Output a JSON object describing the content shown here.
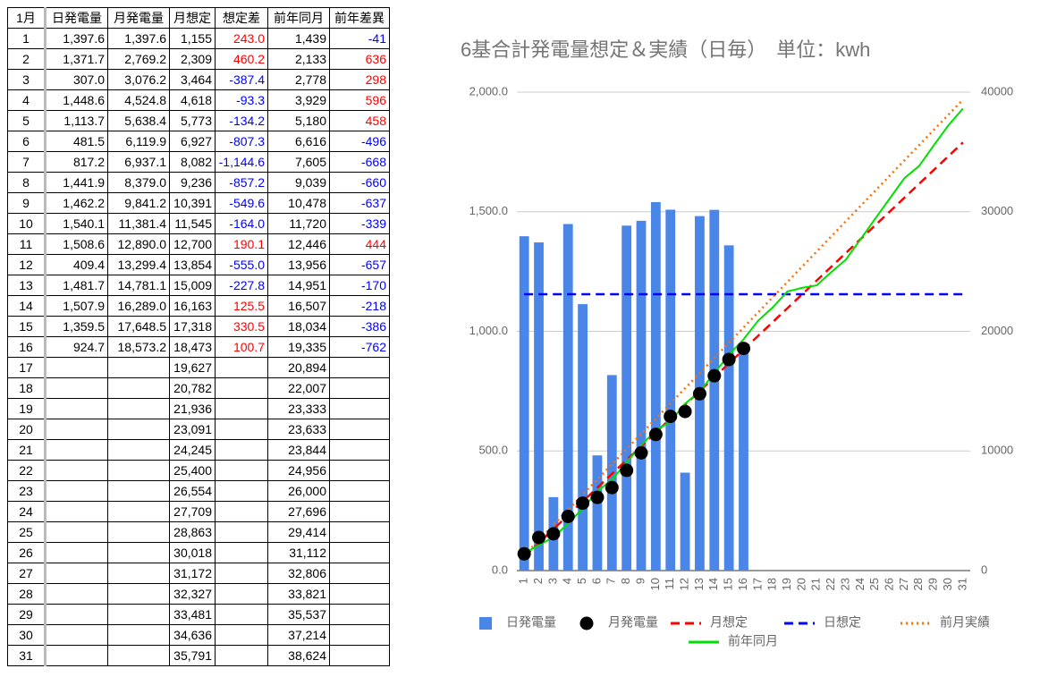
{
  "table": {
    "headers": [
      "1月",
      "日発電量",
      "月発電量",
      "月想定",
      "想定差",
      "前年同月",
      "前年差異"
    ],
    "rows": [
      [
        "1",
        "1,397.6",
        "1,397.6",
        "1,155",
        "243.0",
        "1,439",
        "-41"
      ],
      [
        "2",
        "1,371.7",
        "2,769.2",
        "2,309",
        "460.2",
        "2,133",
        "636"
      ],
      [
        "3",
        "307.0",
        "3,076.2",
        "3,464",
        "-387.4",
        "2,778",
        "298"
      ],
      [
        "4",
        "1,448.6",
        "4,524.8",
        "4,618",
        "-93.3",
        "3,929",
        "596"
      ],
      [
        "5",
        "1,113.7",
        "5,638.4",
        "5,773",
        "-134.2",
        "5,180",
        "458"
      ],
      [
        "6",
        "481.5",
        "6,119.9",
        "6,927",
        "-807.3",
        "6,616",
        "-496"
      ],
      [
        "7",
        "817.2",
        "6,937.1",
        "8,082",
        "-1,144.6",
        "7,605",
        "-668"
      ],
      [
        "8",
        "1,441.9",
        "8,379.0",
        "9,236",
        "-857.2",
        "9,039",
        "-660"
      ],
      [
        "9",
        "1,462.2",
        "9,841.2",
        "10,391",
        "-549.6",
        "10,478",
        "-637"
      ],
      [
        "10",
        "1,540.1",
        "11,381.4",
        "11,545",
        "-164.0",
        "11,720",
        "-339"
      ],
      [
        "11",
        "1,508.6",
        "12,890.0",
        "12,700",
        "190.1",
        "12,446",
        "444"
      ],
      [
        "12",
        "409.4",
        "13,299.4",
        "13,854",
        "-555.0",
        "13,956",
        "-657"
      ],
      [
        "13",
        "1,481.7",
        "14,781.1",
        "15,009",
        "-227.8",
        "14,951",
        "-170"
      ],
      [
        "14",
        "1,507.9",
        "16,289.0",
        "16,163",
        "125.5",
        "16,507",
        "-218"
      ],
      [
        "15",
        "1,359.5",
        "17,648.5",
        "17,318",
        "330.5",
        "18,034",
        "-386"
      ],
      [
        "16",
        "924.7",
        "18,573.2",
        "18,473",
        "100.7",
        "19,335",
        "-762"
      ],
      [
        "17",
        null,
        null,
        "19,627",
        null,
        "20,894",
        null
      ],
      [
        "18",
        null,
        null,
        "20,782",
        null,
        "22,007",
        null
      ],
      [
        "19",
        null,
        null,
        "21,936",
        null,
        "23,333",
        null
      ],
      [
        "20",
        null,
        null,
        "23,091",
        null,
        "23,633",
        null
      ],
      [
        "21",
        null,
        null,
        "24,245",
        null,
        "23,844",
        null
      ],
      [
        "22",
        null,
        null,
        "25,400",
        null,
        "24,956",
        null
      ],
      [
        "23",
        null,
        null,
        "26,554",
        null,
        "26,000",
        null
      ],
      [
        "24",
        null,
        null,
        "27,709",
        null,
        "27,696",
        null
      ],
      [
        "25",
        null,
        null,
        "28,863",
        null,
        "29,414",
        null
      ],
      [
        "26",
        null,
        null,
        "30,018",
        null,
        "31,112",
        null
      ],
      [
        "27",
        null,
        null,
        "31,172",
        null,
        "32,806",
        null
      ],
      [
        "28",
        null,
        null,
        "32,327",
        null,
        "33,821",
        null
      ],
      [
        "29",
        null,
        null,
        "33,481",
        null,
        "35,537",
        null
      ],
      [
        "30",
        null,
        null,
        "34,636",
        null,
        "37,214",
        null
      ],
      [
        "31",
        null,
        null,
        "35,791",
        null,
        "38,624",
        null
      ]
    ]
  },
  "chart_data": {
    "type": "combo",
    "title": "6基合計発電量想定＆実績（日毎）　単位：kwh",
    "categories": [
      "1",
      "2",
      "3",
      "4",
      "5",
      "6",
      "7",
      "8",
      "9",
      "10",
      "11",
      "12",
      "13",
      "14",
      "15",
      "16",
      "17",
      "18",
      "19",
      "20",
      "21",
      "22",
      "23",
      "24",
      "25",
      "26",
      "27",
      "28",
      "29",
      "30",
      "31"
    ],
    "ylim": [
      0,
      2000
    ],
    "yticks": [
      {
        "value": 0,
        "label": "0.0"
      },
      {
        "value": 500,
        "label": "500.0"
      },
      {
        "value": 1000,
        "label": "1,000.0"
      },
      {
        "value": 1500,
        "label": "1,500.0"
      },
      {
        "value": 2000,
        "label": "2,000.0"
      }
    ],
    "y2lim": [
      0,
      40000
    ],
    "y2ticks": [
      0,
      10000,
      20000,
      30000,
      40000
    ],
    "grid": true,
    "legend": "bottom",
    "series": [
      {
        "name": "日発電量",
        "type": "bar",
        "color": "#4a86e8",
        "values": [
          1397.6,
          1371.7,
          307.0,
          1448.6,
          1113.7,
          481.5,
          817.2,
          1441.9,
          1462.2,
          1540.1,
          1508.6,
          409.4,
          1481.7,
          1507.9,
          1359.5,
          924.7,
          null,
          null,
          null,
          null,
          null,
          null,
          null,
          null,
          null,
          null,
          null,
          null,
          null,
          null,
          null
        ]
      },
      {
        "name": "月発電量",
        "type": "scatter",
        "axis": "y2",
        "color": "#000000",
        "values": [
          1397.6,
          2769.2,
          3076.2,
          4524.8,
          5638.4,
          6119.9,
          6937.1,
          8379.0,
          9841.2,
          11381.4,
          12890.0,
          13299.4,
          14781.1,
          16289.0,
          17648.5,
          18573.2,
          null,
          null,
          null,
          null,
          null,
          null,
          null,
          null,
          null,
          null,
          null,
          null,
          null,
          null,
          null
        ]
      },
      {
        "name": "月想定",
        "type": "line",
        "axis": "y2",
        "color": "#ff0000",
        "style": "dashed",
        "values": [
          1155,
          2309,
          3464,
          4618,
          5773,
          6927,
          8082,
          9236,
          10391,
          11545,
          12700,
          13854,
          15009,
          16163,
          17318,
          18473,
          19627,
          20782,
          21936,
          23091,
          24245,
          25400,
          26554,
          27709,
          28863,
          30018,
          31172,
          32327,
          33481,
          34636,
          35791
        ]
      },
      {
        "name": "日想定",
        "type": "line",
        "color": "#0000ff",
        "style": "dashed",
        "values": [
          1155,
          1155,
          1155,
          1155,
          1155,
          1155,
          1155,
          1155,
          1155,
          1155,
          1155,
          1155,
          1155,
          1155,
          1155,
          1155,
          1155,
          1155,
          1155,
          1155,
          1155,
          1155,
          1155,
          1155,
          1155,
          1155,
          1155,
          1155,
          1155,
          1155,
          1155
        ]
      },
      {
        "name": "前月実績",
        "type": "line",
        "axis": "y2",
        "color": "#ff6d01",
        "style": "dotted",
        "values": [
          1270,
          2540,
          3810,
          5080,
          6350,
          7620,
          8890,
          10160,
          11430,
          12700,
          13970,
          15240,
          16510,
          17780,
          19050,
          20320,
          21590,
          22860,
          24130,
          25400,
          26670,
          27940,
          29210,
          30480,
          31750,
          33020,
          34290,
          35560,
          36830,
          38100,
          39370
        ]
      },
      {
        "name": "前年同月",
        "type": "line",
        "axis": "y2",
        "color": "#00e000",
        "style": "solid",
        "values": [
          1439,
          2133,
          2778,
          3929,
          5180,
          6616,
          7605,
          9039,
          10478,
          11720,
          12446,
          13956,
          14951,
          16507,
          18034,
          19335,
          20894,
          22007,
          23333,
          23633,
          23844,
          24956,
          26000,
          27696,
          29414,
          31112,
          32806,
          33821,
          35537,
          37214,
          38624
        ]
      }
    ]
  }
}
